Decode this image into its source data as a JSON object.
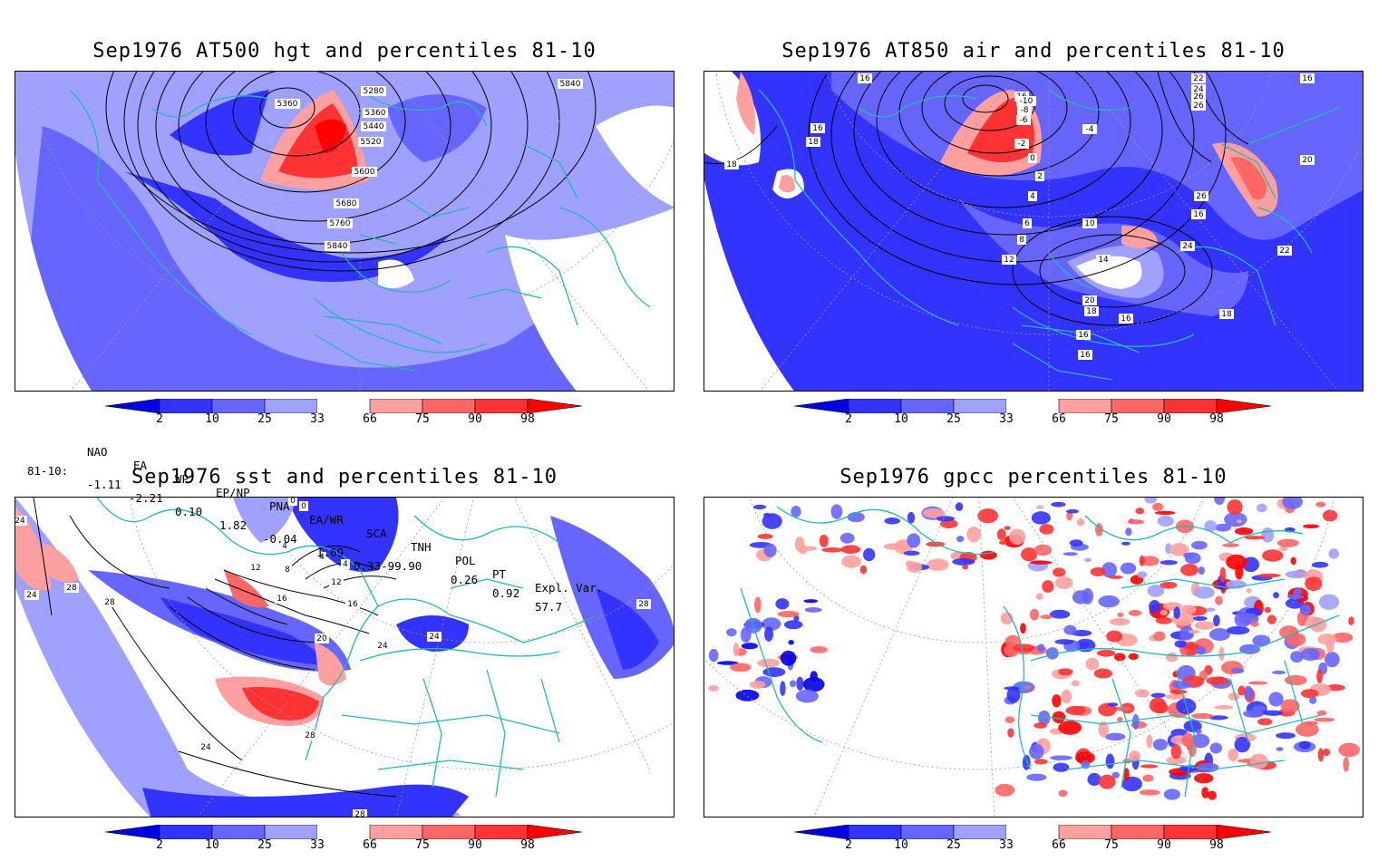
{
  "panels": [
    {
      "title": "Sep1976 AT500 hgt and percentiles 81-10",
      "contour_labels": [
        "5280",
        "5360",
        "5360",
        "5440",
        "5520",
        "5600",
        "5680",
        "5760",
        "5840",
        "5840"
      ]
    },
    {
      "title": "Sep1976 AT850 air and percentiles 81-10",
      "contour_labels": [
        "16",
        "16",
        "18",
        "18",
        "16",
        "-10",
        "-8",
        "-6",
        "-4",
        "-2",
        "0",
        "2",
        "4",
        "6",
        "8",
        "10",
        "12",
        "14",
        "16",
        "18",
        "20",
        "22",
        "24",
        "26",
        "26",
        "26",
        "16",
        "16",
        "20",
        "22",
        "24",
        "18",
        "16",
        "16"
      ]
    },
    {
      "title": "Sep1976 sst and percentiles 81-10",
      "contour_labels": [
        "24",
        "24",
        "28",
        "28",
        "0",
        "0",
        "4",
        "4",
        "4",
        "8",
        "12",
        "12",
        "16",
        "16",
        "20",
        "24",
        "24",
        "28",
        "28",
        "24",
        "28"
      ]
    },
    {
      "title": "Sep1976 gpcc percentiles 81-10",
      "contour_labels": []
    }
  ],
  "colorbar": {
    "labels": [
      "2",
      "10",
      "25",
      "33",
      "66",
      "75",
      "90",
      "98"
    ],
    "colors": [
      "#0000e6",
      "#3333ff",
      "#6666ff",
      "#a0a0ff",
      "#ffffff",
      "#ffa0a0",
      "#ff6666",
      "#ff3333",
      "#ff0000"
    ]
  },
  "indices": {
    "headers": [
      "NAO",
      "EA",
      "WP",
      "EP/NP",
      "PNA",
      "EA/WR",
      "SCA",
      "TNH",
      "POL",
      "PT",
      "Expl. Var."
    ],
    "row_label": "81-10:",
    "values": [
      "-1.11",
      "-2.21",
      "0.10",
      "1.82",
      "-0.04",
      "1.69",
      "0.33-99.90",
      "",
      "0.26",
      "0.92",
      "57.7"
    ]
  },
  "colors": {
    "coast": "#22b8b8",
    "contour": "#000000",
    "grid": "#9a9a9a"
  }
}
